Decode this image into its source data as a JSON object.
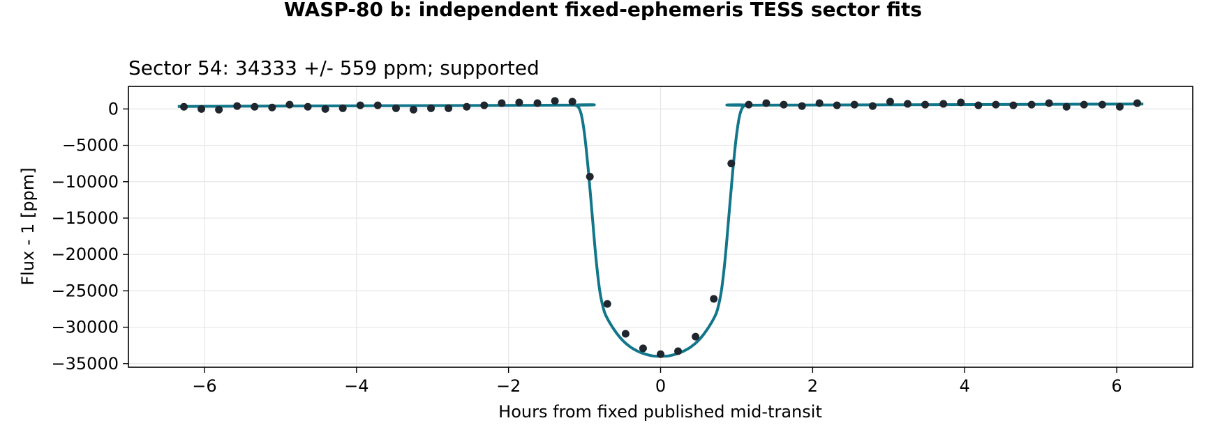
{
  "figure_title": "WASP-80 b: independent fixed-ephemeris TESS sector fits",
  "chart_data": {
    "type": "scatter",
    "title": "Sector 54: 34333 +/- 559 ppm; supported",
    "xlabel": "Hours from fixed published mid-transit",
    "ylabel": "Flux - 1 [ppm]",
    "xlim": [
      -7,
      7
    ],
    "ylim": [
      -35500,
      3100
    ],
    "xticks": [
      -6,
      -4,
      -2,
      0,
      2,
      4,
      6
    ],
    "xtick_labels": [
      "−6",
      "−4",
      "−2",
      "0",
      "2",
      "4",
      "6"
    ],
    "yticks": [
      0,
      -5000,
      -10000,
      -15000,
      -20000,
      -25000,
      -30000,
      -35000
    ],
    "ytick_labels": [
      "0",
      "−5000",
      "−10000",
      "−15000",
      "−20000",
      "−25000",
      "−30000",
      "−35000"
    ],
    "grid": true,
    "colors": {
      "points": "#1f262e",
      "model": "#12768a",
      "grid": "#e6e6e6"
    },
    "series": [
      {
        "kind": "binned-points",
        "x": [
          -6.27,
          -6.04,
          -5.81,
          -5.57,
          -5.34,
          -5.11,
          -4.88,
          -4.64,
          -4.41,
          -4.18,
          -3.95,
          -3.72,
          -3.48,
          -3.25,
          -3.02,
          -2.79,
          -2.55,
          -2.32,
          -2.09,
          -1.86,
          -1.62,
          -1.39,
          -1.16,
          -0.93,
          -0.7,
          -0.46,
          -0.23,
          0.0,
          0.23,
          0.46,
          0.7,
          0.93,
          1.16,
          1.39,
          1.62,
          1.86,
          2.09,
          2.32,
          2.55,
          2.79,
          3.02,
          3.25,
          3.48,
          3.72,
          3.95,
          4.18,
          4.41,
          4.64,
          4.88,
          5.11,
          5.34,
          5.57,
          5.81,
          6.04,
          6.27
        ],
        "y": [
          300,
          0,
          -100,
          400,
          300,
          200,
          600,
          300,
          0,
          100,
          500,
          500,
          100,
          -100,
          100,
          100,
          300,
          500,
          800,
          900,
          800,
          1100,
          1000,
          -9300,
          -26800,
          -30900,
          -32900,
          -33700,
          -33300,
          -31300,
          -26100,
          -7500,
          600,
          800,
          600,
          400,
          800,
          500,
          600,
          400,
          1000,
          700,
          600,
          700,
          900,
          500,
          600,
          500,
          600,
          800,
          300,
          600,
          600,
          300,
          800
        ]
      },
      {
        "kind": "transit-model",
        "x": [
          -6.35,
          -1.3,
          -1.12,
          -1.05,
          -1.0,
          -0.95,
          -0.9,
          -0.85,
          -0.8,
          -0.75,
          -0.7,
          -0.6,
          -0.5,
          -0.4,
          -0.3,
          -0.2,
          -0.1,
          0.0,
          0.1,
          0.2,
          0.3,
          0.4,
          0.5,
          0.6,
          0.7,
          0.75,
          0.8,
          0.85,
          0.9,
          0.95,
          1.0,
          1.05,
          1.12,
          1.3,
          6.35
        ],
        "y": [
          350,
          520,
          500,
          -500,
          -3500,
          -8500,
          -14500,
          -20500,
          -25000,
          -27500,
          -28800,
          -30500,
          -31800,
          -32700,
          -33300,
          -33700,
          -33950,
          -34000,
          -33950,
          -33700,
          -33300,
          -32700,
          -31800,
          -30500,
          -28800,
          -27500,
          -25000,
          -20500,
          -14500,
          -8500,
          -3500,
          -500,
          500,
          520,
          680
        ]
      }
    ]
  }
}
